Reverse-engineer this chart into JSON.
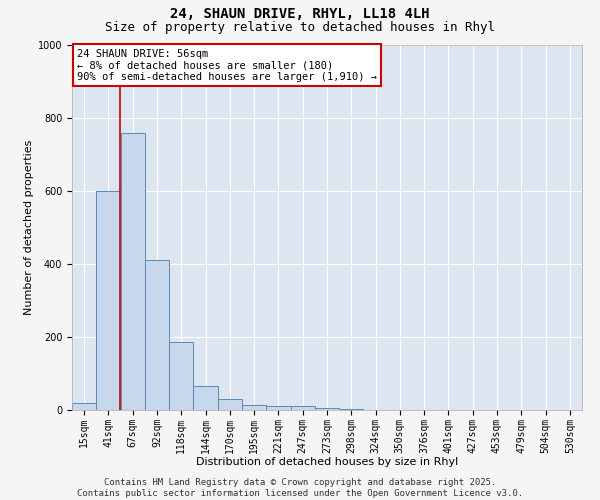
{
  "title_line1": "24, SHAUN DRIVE, RHYL, LL18 4LH",
  "title_line2": "Size of property relative to detached houses in Rhyl",
  "xlabel": "Distribution of detached houses by size in Rhyl",
  "ylabel": "Number of detached properties",
  "categories": [
    "15sqm",
    "41sqm",
    "67sqm",
    "92sqm",
    "118sqm",
    "144sqm",
    "170sqm",
    "195sqm",
    "221sqm",
    "247sqm",
    "273sqm",
    "298sqm",
    "324sqm",
    "350sqm",
    "376sqm",
    "401sqm",
    "427sqm",
    "453sqm",
    "479sqm",
    "504sqm",
    "530sqm"
  ],
  "bar_values": [
    20,
    600,
    760,
    410,
    185,
    65,
    30,
    15,
    10,
    10,
    5,
    2,
    1,
    0,
    0,
    0,
    0,
    0,
    0,
    0,
    0
  ],
  "bar_color": "#c8d8ec",
  "bar_edge_color": "#5a89b4",
  "vline_x": 1.48,
  "vline_color": "#cc0000",
  "annotation_title": "24 SHAUN DRIVE: 56sqm",
  "annotation_line1": "← 8% of detached houses are smaller (180)",
  "annotation_line2": "90% of semi-detached houses are larger (1,910) →",
  "annotation_box_color": "#cc0000",
  "annotation_bg": "#ffffff",
  "ylim": [
    0,
    1000
  ],
  "yticks": [
    0,
    200,
    400,
    600,
    800,
    1000
  ],
  "background_color": "#dde6f0",
  "plot_bg_color": "#dde6f0",
  "fig_bg_color": "#f5f5f5",
  "grid_color": "#ffffff",
  "footer_line1": "Contains HM Land Registry data © Crown copyright and database right 2025.",
  "footer_line2": "Contains public sector information licensed under the Open Government Licence v3.0.",
  "title_fontsize": 10,
  "subtitle_fontsize": 9,
  "axis_label_fontsize": 8,
  "tick_fontsize": 7,
  "footer_fontsize": 6.5,
  "annotation_fontsize": 7.5
}
